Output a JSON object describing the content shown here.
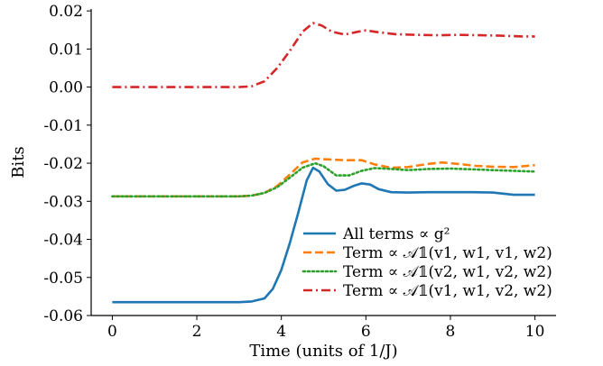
{
  "chart_data": {
    "type": "line",
    "xlabel": "Time (units of 1/J)",
    "ylabel": "Bits",
    "xlim": [
      -0.5,
      10.5
    ],
    "ylim": [
      -0.06,
      0.0205
    ],
    "xticks": [
      0,
      2,
      4,
      6,
      8,
      10
    ],
    "xtick_labels": [
      "0",
      "2",
      "4",
      "6",
      "8",
      "10"
    ],
    "yticks": [
      0.02,
      0.01,
      0.0,
      -0.01,
      -0.02,
      -0.03,
      -0.04,
      -0.05,
      -0.06
    ],
    "ytick_labels": [
      "0.02",
      "0.01",
      "0.00",
      "-0.01",
      "-0.02",
      "-0.03",
      "-0.04",
      "-0.05",
      "-0.06"
    ],
    "grid": false,
    "legend_position": "lower-right",
    "series": [
      {
        "name": "All terms ∝ g²",
        "color": "#1f77b4",
        "style": "solid",
        "x": [
          0,
          1,
          2,
          3,
          3.3,
          3.6,
          3.8,
          4.0,
          4.2,
          4.4,
          4.6,
          4.75,
          4.9,
          5.1,
          5.3,
          5.5,
          5.7,
          5.9,
          6.1,
          6.3,
          6.6,
          7.0,
          7.5,
          8.0,
          8.5,
          9.0,
          9.5,
          10
        ],
        "y": [
          -0.0565,
          -0.0565,
          -0.0565,
          -0.0565,
          -0.0563,
          -0.0555,
          -0.053,
          -0.048,
          -0.041,
          -0.033,
          -0.0245,
          -0.0212,
          -0.0222,
          -0.0255,
          -0.0272,
          -0.027,
          -0.026,
          -0.0253,
          -0.0256,
          -0.0268,
          -0.0276,
          -0.0277,
          -0.0276,
          -0.0276,
          -0.0276,
          -0.0277,
          -0.0283,
          -0.0283
        ]
      },
      {
        "name": "Term ∝ 𝒜𝟙(v1, w1, v1, w2)",
        "color": "#ff7f0e",
        "style": "dashed",
        "x": [
          0,
          1,
          2,
          3,
          3.3,
          3.6,
          3.9,
          4.2,
          4.5,
          4.8,
          5.1,
          5.5,
          5.9,
          6.2,
          6.6,
          7.0,
          7.4,
          7.8,
          8.2,
          8.6,
          9.0,
          9.5,
          10
        ],
        "y": [
          -0.0287,
          -0.0287,
          -0.0287,
          -0.0287,
          -0.0285,
          -0.0278,
          -0.026,
          -0.023,
          -0.0198,
          -0.0188,
          -0.019,
          -0.0192,
          -0.0192,
          -0.0203,
          -0.0212,
          -0.021,
          -0.0203,
          -0.0198,
          -0.0202,
          -0.0207,
          -0.0209,
          -0.021,
          -0.0205
        ]
      },
      {
        "name": "Term ∝ 𝒜𝟙(v2, w1, v2, w2)",
        "color": "#2ca02c",
        "style": "dotted",
        "x": [
          0,
          1,
          2,
          3,
          3.3,
          3.6,
          3.9,
          4.2,
          4.5,
          4.8,
          5.0,
          5.3,
          5.6,
          5.9,
          6.2,
          6.6,
          7.0,
          7.5,
          8.0,
          8.5,
          9.0,
          9.5,
          10
        ],
        "y": [
          -0.0287,
          -0.0287,
          -0.0287,
          -0.0287,
          -0.0285,
          -0.0278,
          -0.0263,
          -0.0238,
          -0.0212,
          -0.02,
          -0.0208,
          -0.0232,
          -0.0232,
          -0.022,
          -0.0213,
          -0.0215,
          -0.0218,
          -0.0215,
          -0.0214,
          -0.0216,
          -0.0218,
          -0.022,
          -0.0222
        ]
      },
      {
        "name": "Term ∝ 𝒜𝟙(v1, w1, v2, w2)",
        "color": "#d62728",
        "style": "dashdot",
        "x": [
          0,
          1,
          2,
          3,
          3.3,
          3.6,
          3.9,
          4.2,
          4.5,
          4.75,
          4.95,
          5.2,
          5.5,
          5.8,
          6.0,
          6.3,
          6.7,
          7.2,
          7.7,
          8.2,
          8.7,
          9.2,
          9.7,
          10
        ],
        "y": [
          0.0,
          0.0,
          0.0,
          0.0,
          0.0002,
          0.0015,
          0.005,
          0.0095,
          0.0145,
          0.0168,
          0.0162,
          0.0145,
          0.0138,
          0.0145,
          0.0149,
          0.0144,
          0.0139,
          0.0137,
          0.0136,
          0.0137,
          0.0136,
          0.0135,
          0.0133,
          0.0133
        ]
      }
    ]
  }
}
